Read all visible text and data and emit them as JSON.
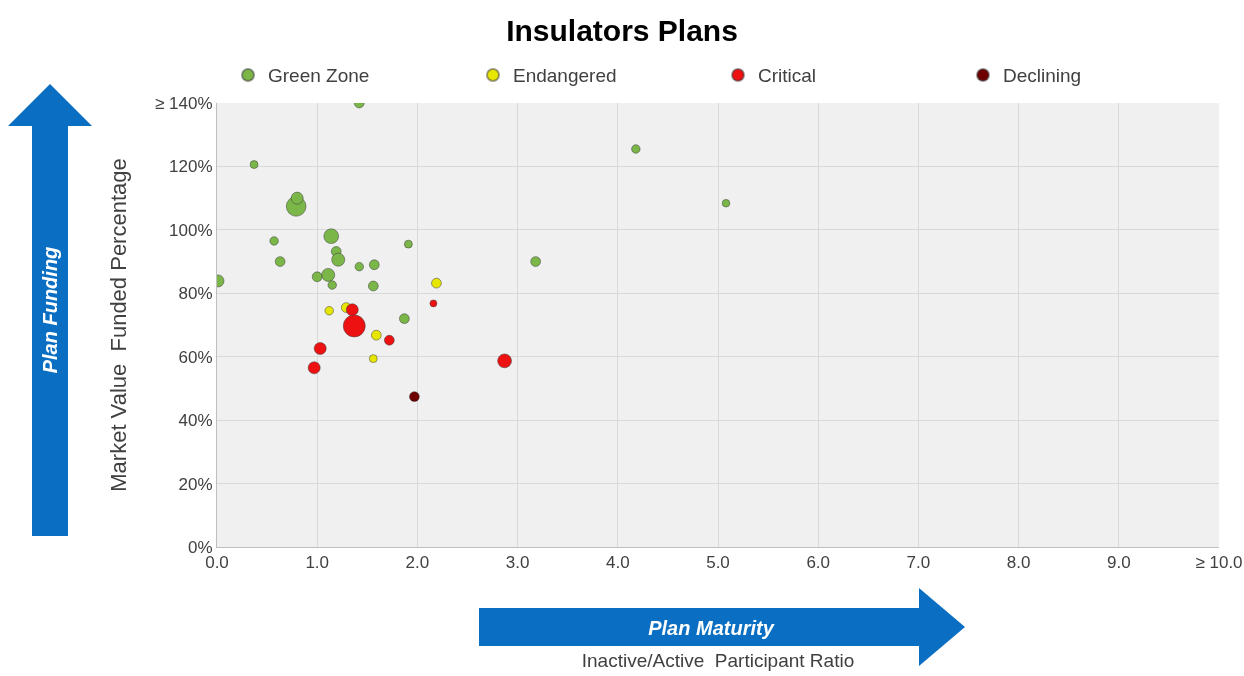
{
  "chart_data": {
    "type": "bubble",
    "title": "Insulators Plans",
    "xlabel": "Inactive/Active  Participant Ratio",
    "ylabel": "Market Value  Funded Percentage",
    "annotations": [
      "Plan Funding",
      "Plan Maturity"
    ],
    "xlim": [
      0,
      10
    ],
    "xticks": [
      {
        "value": 0,
        "label": "0.0"
      },
      {
        "value": 1,
        "label": "1.0"
      },
      {
        "value": 2,
        "label": "2.0"
      },
      {
        "value": 3,
        "label": "3.0"
      },
      {
        "value": 4,
        "label": "4.0"
      },
      {
        "value": 5,
        "label": "5.0"
      },
      {
        "value": 6,
        "label": "6.0"
      },
      {
        "value": 7,
        "label": "7.0"
      },
      {
        "value": 8,
        "label": "8.0"
      },
      {
        "value": 9,
        "label": "9.0"
      },
      {
        "value": 10,
        "label": "≥ 10.0"
      }
    ],
    "ylim": [
      0,
      140
    ],
    "yticks": [
      {
        "value": 0,
        "label": "0%"
      },
      {
        "value": 20,
        "label": "20%"
      },
      {
        "value": 40,
        "label": "40%"
      },
      {
        "value": 60,
        "label": "60%"
      },
      {
        "value": 80,
        "label": "80%"
      },
      {
        "value": 100,
        "label": "100%"
      },
      {
        "value": 120,
        "label": "120%"
      },
      {
        "value": 140,
        "label": "≥ 140%"
      }
    ],
    "grid": true,
    "legend": "top",
    "marker": "circle",
    "series": [
      {
        "name": "Green Zone",
        "color": "#7ab648",
        "x": [
          1.42,
          0.37,
          0.79,
          0.8,
          0.57,
          1.14,
          1.91,
          0.63,
          1.19,
          1.21,
          1.42,
          1.57,
          1.0,
          1.11,
          0.01,
          1.15,
          1.56,
          1.87,
          4.18,
          5.08,
          3.18
        ],
        "values": [
          140,
          120.6,
          107.4,
          110,
          96.5,
          98,
          95.5,
          90,
          93.2,
          90.6,
          88.4,
          89,
          85.2,
          85.8,
          83.9,
          82.6,
          82.3,
          72,
          125.5,
          108.4,
          90
        ],
        "sizes": [
          0.2,
          0.13,
          0.8,
          0.3,
          0.15,
          0.45,
          0.13,
          0.2,
          0.2,
          0.35,
          0.15,
          0.2,
          0.2,
          0.35,
          0.3,
          0.15,
          0.2,
          0.2,
          0.15,
          0.12,
          0.2
        ]
      },
      {
        "name": "Endangered",
        "color": "#e6e600",
        "x": [
          1.12,
          1.29,
          2.19,
          1.59,
          1.56
        ],
        "values": [
          74.5,
          75.5,
          83.2,
          66.8,
          59.4
        ],
        "sizes": [
          0.15,
          0.2,
          0.2,
          0.2,
          0.13
        ]
      },
      {
        "name": "Critical",
        "color": "#ee1111",
        "x": [
          1.35,
          1.37,
          1.03,
          0.97,
          1.72,
          2.16,
          2.87
        ],
        "values": [
          74.8,
          69.7,
          62.6,
          56.5,
          65.2,
          76.8,
          58.7
        ],
        "sizes": [
          0.3,
          1,
          0.3,
          0.3,
          0.2,
          0.1,
          0.4
        ]
      },
      {
        "name": "Declining",
        "color": "#6e0000",
        "x": [
          1.97
        ],
        "values": [
          47.4
        ],
        "sizes": [
          0.2
        ]
      }
    ]
  }
}
